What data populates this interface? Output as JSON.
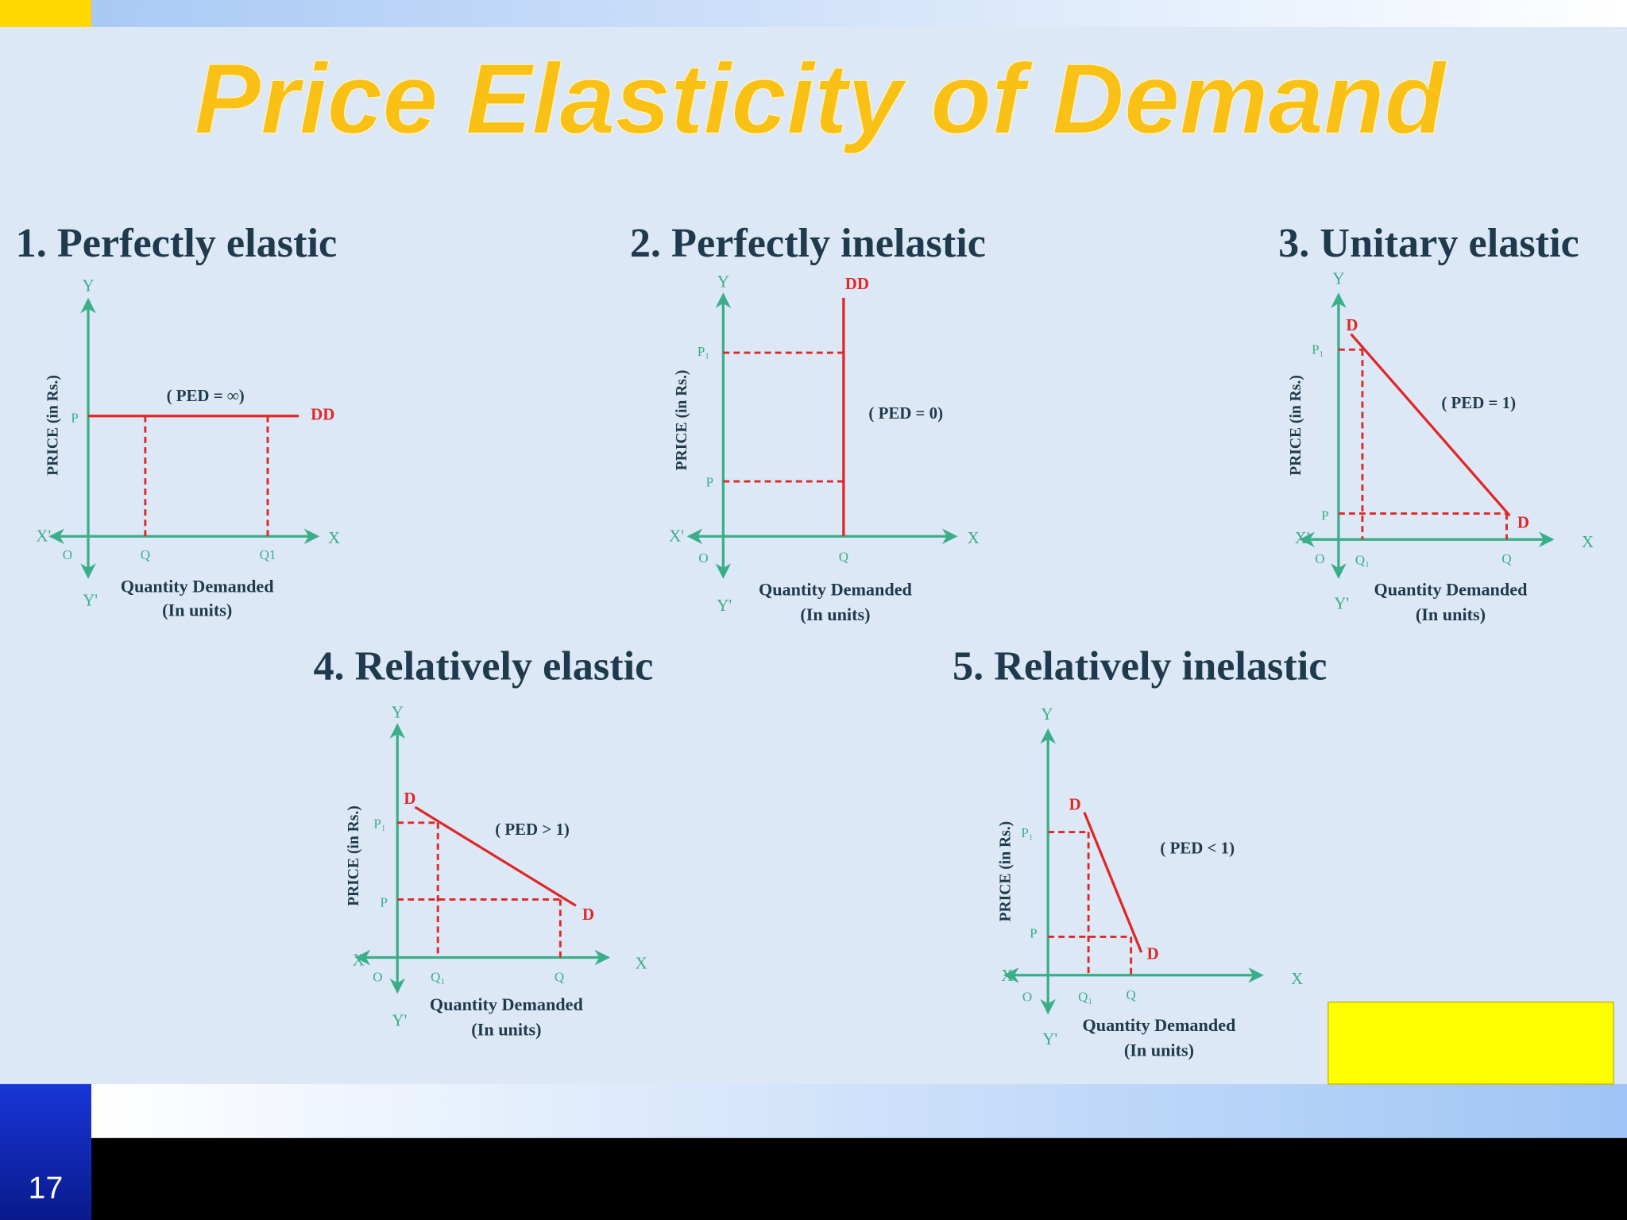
{
  "title": "Price Elasticity of Demand",
  "slide_number": "17",
  "diagrams": [
    {
      "heading": "1. Perfectly elastic",
      "y_axis_label": "PRICE (in Rs.)",
      "x_axis_label": [
        "Quantity Demanded",
        "(In units)"
      ],
      "y": "Y",
      "x": "X",
      "x_neg": "X'",
      "y_neg": "Y'",
      "origin": "O",
      "ped": "( PED = ∞)",
      "curve_labels": [
        "DD"
      ],
      "price_labels": [
        "P"
      ],
      "quantity_labels": [
        "Q",
        "Q1"
      ]
    },
    {
      "heading": "2. Perfectly inelastic",
      "y_axis_label": "PRICE (in Rs.)",
      "x_axis_label": [
        "Quantity Demanded",
        "(In units)"
      ],
      "y": "Y",
      "x": "X",
      "x_neg": "X'",
      "y_neg": "Y'",
      "origin": "O",
      "ped": "( PED = 0)",
      "curve_labels": [
        "DD"
      ],
      "price_labels": [
        "P₁",
        "P"
      ],
      "quantity_labels": [
        "Q"
      ]
    },
    {
      "heading": "3. Unitary elastic",
      "y_axis_label": "PRICE (in Rs.)",
      "x_axis_label": [
        "Quantity Demanded",
        "(In units)"
      ],
      "y": "Y",
      "x": "X",
      "x_neg": "X'",
      "y_neg": "Y'",
      "origin": "O",
      "ped": "( PED = 1)",
      "curve_labels": [
        "D",
        "D"
      ],
      "price_labels": [
        "P₁",
        "P"
      ],
      "quantity_labels": [
        "Q₁",
        "Q"
      ]
    },
    {
      "heading": "4. Relatively elastic",
      "y_axis_label": "PRICE (in Rs.)",
      "x_axis_label": [
        "Quantity Demanded",
        "(In units)"
      ],
      "y": "Y",
      "x": "X",
      "x_neg": "X'",
      "y_neg": "Y'",
      "origin": "O",
      "ped": "( PED > 1)",
      "curve_labels": [
        "D",
        "D"
      ],
      "price_labels": [
        "P₁",
        "P"
      ],
      "quantity_labels": [
        "Q₁",
        "Q"
      ]
    },
    {
      "heading": "5. Relatively inelastic",
      "y_axis_label": "PRICE (in Rs.)",
      "x_axis_label": [
        "Quantity Demanded",
        "(In units)"
      ],
      "y": "Y",
      "x": "X",
      "x_neg": "X'",
      "y_neg": "Y'",
      "origin": "O",
      "ped": "( PED < 1)",
      "curve_labels": [
        "D",
        "D"
      ],
      "price_labels": [
        "P₁",
        "P"
      ],
      "quantity_labels": [
        "Q₁",
        "Q"
      ]
    }
  ]
}
